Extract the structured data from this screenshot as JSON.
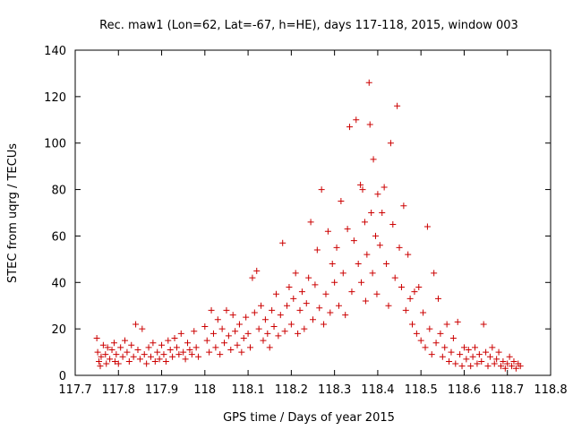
{
  "chart_data": {
    "type": "scatter",
    "title": "Rec. maw1 (Lon=62, Lat=-67, h=HE), days 117-118, 2015, window 003",
    "xlabel": "GPS time / Days of year 2015",
    "ylabel": "STEC from uqrg / TECUs",
    "xlim": [
      117.7,
      118.8
    ],
    "ylim": [
      0,
      140
    ],
    "xticks": [
      "117.7",
      "117.8",
      "117.9",
      "118",
      "118.1",
      "118.2",
      "118.3",
      "118.4",
      "118.5",
      "118.6",
      "118.7",
      "118.8"
    ],
    "yticks": [
      "0",
      "20",
      "40",
      "60",
      "80",
      "100",
      "120",
      "140"
    ],
    "grid": false,
    "legend": "none",
    "marker": "plus",
    "color": "#cc0000",
    "series": [
      {
        "points": [
          [
            117.75,
            16
          ],
          [
            117.752,
            10
          ],
          [
            117.755,
            6
          ],
          [
            117.758,
            4
          ],
          [
            117.76,
            8
          ],
          [
            117.765,
            13
          ],
          [
            117.77,
            9
          ],
          [
            117.772,
            5
          ],
          [
            117.775,
            12
          ],
          [
            117.78,
            7
          ],
          [
            117.785,
            11
          ],
          [
            117.79,
            14
          ],
          [
            117.792,
            6
          ],
          [
            117.795,
            9
          ],
          [
            117.8,
            5
          ],
          [
            117.805,
            12
          ],
          [
            117.81,
            8
          ],
          [
            117.815,
            15
          ],
          [
            117.82,
            10
          ],
          [
            117.825,
            6
          ],
          [
            117.83,
            13
          ],
          [
            117.835,
            8
          ],
          [
            117.84,
            22
          ],
          [
            117.845,
            11
          ],
          [
            117.85,
            7
          ],
          [
            117.855,
            20
          ],
          [
            117.86,
            9
          ],
          [
            117.865,
            5
          ],
          [
            117.87,
            12
          ],
          [
            117.875,
            8
          ],
          [
            117.88,
            14
          ],
          [
            117.885,
            6
          ],
          [
            117.89,
            10
          ],
          [
            117.895,
            7
          ],
          [
            117.9,
            13
          ],
          [
            117.905,
            9
          ],
          [
            117.91,
            6
          ],
          [
            117.915,
            15
          ],
          [
            117.92,
            11
          ],
          [
            117.925,
            8
          ],
          [
            117.93,
            16
          ],
          [
            117.935,
            12
          ],
          [
            117.94,
            9
          ],
          [
            117.945,
            18
          ],
          [
            117.95,
            10
          ],
          [
            117.955,
            7
          ],
          [
            117.96,
            14
          ],
          [
            117.965,
            11
          ],
          [
            117.97,
            9
          ],
          [
            117.975,
            19
          ],
          [
            117.98,
            12
          ],
          [
            117.985,
            8
          ],
          [
            118.0,
            21
          ],
          [
            118.005,
            15
          ],
          [
            118.01,
            10
          ],
          [
            118.015,
            28
          ],
          [
            118.02,
            18
          ],
          [
            118.025,
            12
          ],
          [
            118.03,
            24
          ],
          [
            118.035,
            9
          ],
          [
            118.04,
            20
          ],
          [
            118.045,
            14
          ],
          [
            118.05,
            28
          ],
          [
            118.055,
            17
          ],
          [
            118.06,
            11
          ],
          [
            118.065,
            26
          ],
          [
            118.07,
            19
          ],
          [
            118.075,
            13
          ],
          [
            118.08,
            22
          ],
          [
            118.085,
            10
          ],
          [
            118.09,
            16
          ],
          [
            118.095,
            25
          ],
          [
            118.1,
            18
          ],
          [
            118.105,
            12
          ],
          [
            118.11,
            42
          ],
          [
            118.115,
            27
          ],
          [
            118.12,
            45
          ],
          [
            118.125,
            20
          ],
          [
            118.13,
            30
          ],
          [
            118.135,
            15
          ],
          [
            118.14,
            24
          ],
          [
            118.145,
            18
          ],
          [
            118.15,
            12
          ],
          [
            118.155,
            28
          ],
          [
            118.16,
            21
          ],
          [
            118.165,
            35
          ],
          [
            118.17,
            17
          ],
          [
            118.175,
            26
          ],
          [
            118.18,
            57
          ],
          [
            118.185,
            19
          ],
          [
            118.19,
            30
          ],
          [
            118.195,
            38
          ],
          [
            118.2,
            22
          ],
          [
            118.205,
            33
          ],
          [
            118.21,
            44
          ],
          [
            118.215,
            18
          ],
          [
            118.22,
            28
          ],
          [
            118.225,
            36
          ],
          [
            118.23,
            20
          ],
          [
            118.235,
            31
          ],
          [
            118.24,
            42
          ],
          [
            118.245,
            66
          ],
          [
            118.25,
            24
          ],
          [
            118.255,
            39
          ],
          [
            118.26,
            54
          ],
          [
            118.265,
            29
          ],
          [
            118.27,
            80
          ],
          [
            118.275,
            22
          ],
          [
            118.28,
            35
          ],
          [
            118.285,
            62
          ],
          [
            118.29,
            27
          ],
          [
            118.295,
            48
          ],
          [
            118.3,
            40
          ],
          [
            118.305,
            55
          ],
          [
            118.31,
            30
          ],
          [
            118.315,
            75
          ],
          [
            118.32,
            44
          ],
          [
            118.325,
            26
          ],
          [
            118.33,
            63
          ],
          [
            118.335,
            107
          ],
          [
            118.34,
            36
          ],
          [
            118.345,
            58
          ],
          [
            118.35,
            110
          ],
          [
            118.355,
            48
          ],
          [
            118.36,
            82
          ],
          [
            118.362,
            40
          ],
          [
            118.365,
            80
          ],
          [
            118.37,
            66
          ],
          [
            118.372,
            32
          ],
          [
            118.375,
            52
          ],
          [
            118.38,
            126
          ],
          [
            118.382,
            108
          ],
          [
            118.385,
            70
          ],
          [
            118.388,
            44
          ],
          [
            118.39,
            93
          ],
          [
            118.395,
            60
          ],
          [
            118.398,
            35
          ],
          [
            118.4,
            78
          ],
          [
            118.405,
            56
          ],
          [
            118.41,
            70
          ],
          [
            118.415,
            81
          ],
          [
            118.42,
            48
          ],
          [
            118.425,
            30
          ],
          [
            118.43,
            100
          ],
          [
            118.435,
            65
          ],
          [
            118.44,
            42
          ],
          [
            118.445,
            116
          ],
          [
            118.45,
            55
          ],
          [
            118.455,
            38
          ],
          [
            118.46,
            73
          ],
          [
            118.465,
            28
          ],
          [
            118.47,
            52
          ],
          [
            118.475,
            33
          ],
          [
            118.48,
            22
          ],
          [
            118.485,
            36
          ],
          [
            118.49,
            18
          ],
          [
            118.495,
            38
          ],
          [
            118.5,
            15
          ],
          [
            118.505,
            27
          ],
          [
            118.51,
            12
          ],
          [
            118.515,
            64
          ],
          [
            118.52,
            20
          ],
          [
            118.525,
            9
          ],
          [
            118.53,
            44
          ],
          [
            118.535,
            14
          ],
          [
            118.54,
            33
          ],
          [
            118.545,
            18
          ],
          [
            118.55,
            8
          ],
          [
            118.555,
            12
          ],
          [
            118.56,
            22
          ],
          [
            118.565,
            6
          ],
          [
            118.57,
            10
          ],
          [
            118.575,
            16
          ],
          [
            118.58,
            5
          ],
          [
            118.585,
            23
          ],
          [
            118.59,
            9
          ],
          [
            118.595,
            4
          ],
          [
            118.6,
            12
          ],
          [
            118.605,
            7
          ],
          [
            118.61,
            11
          ],
          [
            118.615,
            4
          ],
          [
            118.62,
            8
          ],
          [
            118.625,
            12
          ],
          [
            118.63,
            5
          ],
          [
            118.635,
            9
          ],
          [
            118.64,
            6
          ],
          [
            118.645,
            22
          ],
          [
            118.65,
            10
          ],
          [
            118.655,
            4
          ],
          [
            118.66,
            8
          ],
          [
            118.665,
            12
          ],
          [
            118.67,
            5
          ],
          [
            118.675,
            7
          ],
          [
            118.68,
            10
          ],
          [
            118.685,
            4
          ],
          [
            118.69,
            6
          ],
          [
            118.695,
            3
          ],
          [
            118.7,
            5
          ],
          [
            118.705,
            8
          ],
          [
            118.71,
            4
          ],
          [
            118.715,
            6
          ],
          [
            118.72,
            3
          ],
          [
            118.725,
            5
          ],
          [
            118.73,
            4
          ]
        ]
      }
    ]
  }
}
